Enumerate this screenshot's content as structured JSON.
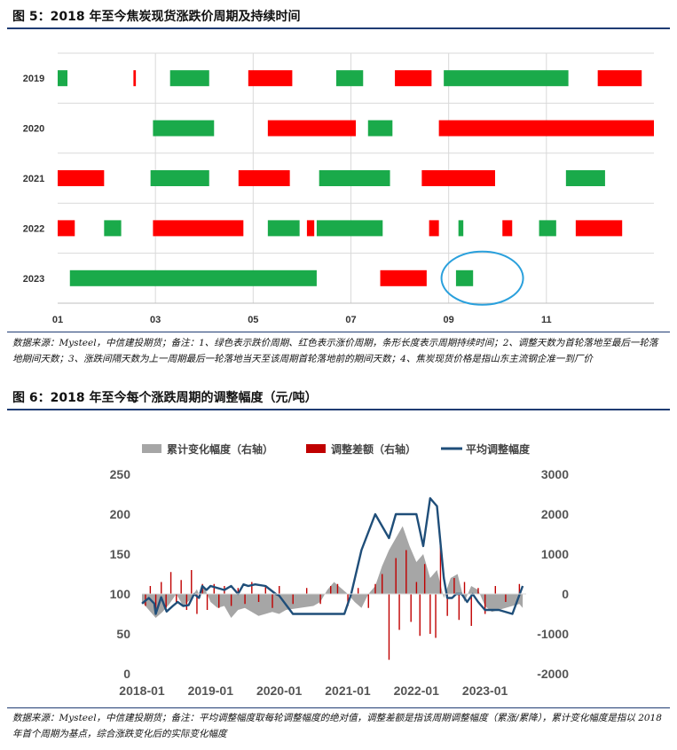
{
  "figure5": {
    "title": "图 5：2018 年至今焦炭现货涨跌价周期及持续时间",
    "note": "数据来源：Mysteel，中信建投期货；备注：1、绿色表示跌价周期、红色表示涨价周期，条形长度表示周期持续时间；2、调整天数为首轮落地至最后一轮落地期间天数；3、涨跌间隔天数为上一周期最后一轮落地当天至该周期首轮落地前的期间天数；4、焦炭现货价格是指山东主流钢企准一到厂价",
    "colors": {
      "up": "#ff0000",
      "down": "#1aaa4a",
      "highlight": "#2aa0dc"
    },
    "chart_data": {
      "type": "gantt",
      "x_unit": "month",
      "xlim": [
        1,
        13.2
      ],
      "xticks": [
        "01",
        "03",
        "05",
        "07",
        "09",
        "11"
      ],
      "rows": [
        {
          "year": "2019",
          "segments": [
            {
              "start": 1.0,
              "end": 1.2,
              "type": "down"
            },
            {
              "start": 2.55,
              "end": 2.6,
              "type": "up"
            },
            {
              "start": 3.3,
              "end": 4.1,
              "type": "down"
            },
            {
              "start": 4.9,
              "end": 5.8,
              "type": "up"
            },
            {
              "start": 6.7,
              "end": 7.25,
              "type": "down"
            },
            {
              "start": 7.9,
              "end": 8.65,
              "type": "up"
            },
            {
              "start": 8.9,
              "end": 11.45,
              "type": "down"
            },
            {
              "start": 12.05,
              "end": 12.95,
              "type": "up"
            }
          ]
        },
        {
          "year": "2020",
          "segments": [
            {
              "start": 2.95,
              "end": 4.2,
              "type": "down"
            },
            {
              "start": 5.3,
              "end": 7.1,
              "type": "up"
            },
            {
              "start": 7.35,
              "end": 7.85,
              "type": "down"
            },
            {
              "start": 8.8,
              "end": 13.2,
              "type": "up"
            }
          ]
        },
        {
          "year": "2021",
          "segments": [
            {
              "start": 1.0,
              "end": 1.95,
              "type": "up"
            },
            {
              "start": 2.9,
              "end": 4.1,
              "type": "down"
            },
            {
              "start": 4.7,
              "end": 5.75,
              "type": "up"
            },
            {
              "start": 6.35,
              "end": 7.8,
              "type": "down"
            },
            {
              "start": 8.45,
              "end": 9.95,
              "type": "up"
            },
            {
              "start": 11.4,
              "end": 12.2,
              "type": "down"
            }
          ]
        },
        {
          "year": "2022",
          "segments": [
            {
              "start": 1.0,
              "end": 1.35,
              "type": "up"
            },
            {
              "start": 1.95,
              "end": 2.3,
              "type": "down"
            },
            {
              "start": 2.95,
              "end": 4.8,
              "type": "up"
            },
            {
              "start": 5.3,
              "end": 5.95,
              "type": "down"
            },
            {
              "start": 6.1,
              "end": 6.25,
              "type": "up"
            },
            {
              "start": 6.3,
              "end": 7.65,
              "type": "down"
            },
            {
              "start": 8.6,
              "end": 8.8,
              "type": "up"
            },
            {
              "start": 9.2,
              "end": 9.3,
              "type": "down"
            },
            {
              "start": 10.1,
              "end": 10.3,
              "type": "up"
            },
            {
              "start": 10.85,
              "end": 11.2,
              "type": "down"
            },
            {
              "start": 11.6,
              "end": 12.55,
              "type": "up"
            }
          ]
        },
        {
          "year": "2023",
          "segments": [
            {
              "start": 1.25,
              "end": 6.3,
              "type": "down"
            },
            {
              "start": 7.6,
              "end": 8.55,
              "type": "up"
            },
            {
              "start": 9.15,
              "end": 9.5,
              "type": "down"
            }
          ]
        }
      ]
    }
  },
  "figure6": {
    "title": "图 6：2018 年至今每个涨跌周期的调整幅度（元/吨）",
    "note": "数据来源：Mysteel，中信建投期货；备注：平均调整幅度取每轮调整幅度的绝对值，调整差额是指该周期调整幅度（累涨/累降），累计变化幅度是指以 2018 年首个周期为基点，综合涨跌变化后的实际变化幅度",
    "colors": {
      "area": "#a6a6a6",
      "bar": "#c00000",
      "line": "#1f4e79"
    },
    "chart_data": {
      "type": "combo",
      "legend": [
        "累计变化幅度（右轴）",
        "调整差额（右轴）",
        "平均调整幅度"
      ],
      "legend_position": "top",
      "left_axis": {
        "ylim": [
          0,
          250
        ],
        "ticks": [
          "0",
          "50",
          "100",
          "150",
          "200",
          "250"
        ]
      },
      "right_axis": {
        "ylim": [
          -2000,
          3000
        ],
        "ticks": [
          "-2000",
          "-1000",
          "0",
          "1000",
          "2000",
          "3000"
        ]
      },
      "xlim": [
        2018.0,
        2023.6
      ],
      "xticks": [
        "2018-01",
        "2019-01",
        "2020-01",
        "2021-01",
        "2022-01",
        "2023-01"
      ],
      "series": [
        {
          "name": "累计变化幅度（右轴）",
          "kind": "area",
          "axis": "right",
          "x": [
            2018.0,
            2018.1,
            2018.2,
            2018.3,
            2018.4,
            2018.5,
            2018.6,
            2018.7,
            2018.8,
            2018.85,
            2018.9,
            2019.0,
            2019.1,
            2019.2,
            2019.3,
            2019.4,
            2019.5,
            2019.6,
            2019.7,
            2019.8,
            2019.9,
            2020.0,
            2020.1,
            2020.3,
            2020.5,
            2020.6,
            2020.7,
            2020.8,
            2020.9,
            2021.0,
            2021.1,
            2021.2,
            2021.3,
            2021.4,
            2021.5,
            2021.6,
            2021.7,
            2021.8,
            2021.9,
            2022.0,
            2022.1,
            2022.2,
            2022.3,
            2022.4,
            2022.5,
            2022.6,
            2022.7,
            2022.8,
            2022.9,
            2023.0,
            2023.1,
            2023.2,
            2023.3,
            2023.4,
            2023.5,
            2023.55
          ],
          "y": [
            -200,
            -400,
            -600,
            -450,
            -250,
            0,
            -300,
            -150,
            120,
            -100,
            200,
            -200,
            -350,
            -300,
            -600,
            -400,
            -350,
            -450,
            -550,
            -500,
            -450,
            -500,
            -400,
            -350,
            -300,
            -200,
            100,
            300,
            150,
            0,
            -200,
            -350,
            0,
            200,
            700,
            1100,
            1400,
            1700,
            1200,
            800,
            1000,
            400,
            600,
            -100,
            400,
            500,
            -200,
            200,
            100,
            -300,
            -450,
            -400,
            -350,
            -300,
            -250,
            -350
          ]
        },
        {
          "name": "调整差额（右轴）",
          "kind": "bar",
          "axis": "right",
          "x": [
            2018.05,
            2018.12,
            2018.2,
            2018.28,
            2018.35,
            2018.42,
            2018.5,
            2018.57,
            2018.65,
            2018.72,
            2018.8,
            2018.88,
            2018.95,
            2019.05,
            2019.12,
            2019.2,
            2019.3,
            2019.4,
            2019.5,
            2019.6,
            2019.7,
            2019.8,
            2019.9,
            2020.0,
            2020.2,
            2020.4,
            2020.6,
            2020.75,
            2020.85,
            2021.0,
            2021.15,
            2021.3,
            2021.4,
            2021.5,
            2021.6,
            2021.7,
            2021.75,
            2021.85,
            2021.92,
            2022.0,
            2022.05,
            2022.12,
            2022.2,
            2022.28,
            2022.35,
            2022.45,
            2022.55,
            2022.62,
            2022.7,
            2022.8,
            2022.9,
            2023.0,
            2023.15,
            2023.3,
            2023.5
          ],
          "y": [
            -300,
            200,
            -400,
            300,
            -350,
            550,
            -250,
            350,
            -400,
            600,
            -500,
            250,
            -400,
            250,
            -350,
            200,
            -300,
            150,
            -250,
            300,
            -200,
            200,
            -350,
            200,
            -250,
            150,
            -250,
            200,
            250,
            -300,
            150,
            -350,
            250,
            500,
            -1650,
            900,
            -900,
            1100,
            -700,
            300,
            -1050,
            750,
            -1000,
            -1100,
            1200,
            -550,
            400,
            -650,
            300,
            -800,
            150,
            -500,
            200,
            -200,
            250
          ]
        },
        {
          "name": "平均调整幅度",
          "kind": "line",
          "axis": "left",
          "x": [
            2018.0,
            2018.1,
            2018.18,
            2018.2,
            2018.28,
            2018.36,
            2018.45,
            2018.52,
            2018.6,
            2018.68,
            2018.76,
            2018.83,
            2018.88,
            2018.94,
            2019.0,
            2019.2,
            2019.3,
            2019.4,
            2019.48,
            2019.55,
            2019.65,
            2019.8,
            2019.95,
            2020.0,
            2020.2,
            2020.45,
            2020.6,
            2020.8,
            2020.95,
            2021.05,
            2021.2,
            2021.4,
            2021.6,
            2021.7,
            2021.82,
            2021.92,
            2022.0,
            2022.1,
            2022.2,
            2022.3,
            2022.4,
            2022.45,
            2022.52,
            2022.58,
            2022.66,
            2022.74,
            2022.82,
            2022.9,
            2023.0,
            2023.2,
            2023.4,
            2023.55
          ],
          "y": [
            88,
            95,
            88,
            75,
            96,
            78,
            85,
            90,
            85,
            86,
            100,
            95,
            110,
            105,
            110,
            105,
            110,
            100,
            112,
            110,
            112,
            110,
            100,
            98,
            75,
            75,
            75,
            75,
            75,
            100,
            155,
            200,
            170,
            200,
            200,
            200,
            200,
            160,
            220,
            210,
            120,
            95,
            95,
            100,
            100,
            90,
            100,
            90,
            80,
            80,
            75,
            110
          ]
        }
      ]
    }
  }
}
